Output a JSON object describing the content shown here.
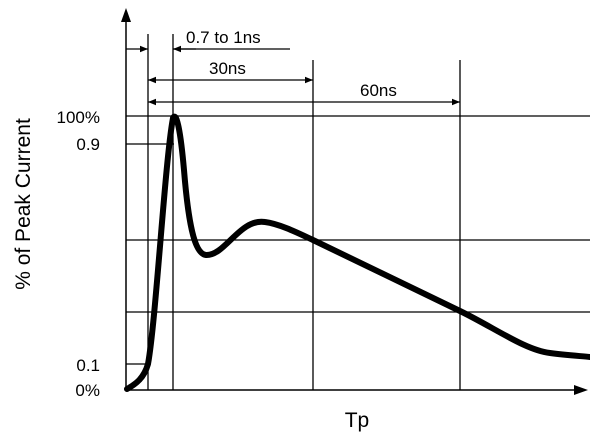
{
  "diagram": {
    "y_axis_title": "% of Peak Current",
    "x_axis_title": "Tp",
    "y_labels": {
      "top": "100%",
      "p90": "0.9",
      "p10": "0.1",
      "zero": "0%"
    },
    "dimensions": {
      "rise_time": "0.7 to 1ns",
      "t30": "30ns",
      "t60": "60ns"
    },
    "colors": {
      "line": "#000000",
      "background": "#ffffff"
    }
  }
}
